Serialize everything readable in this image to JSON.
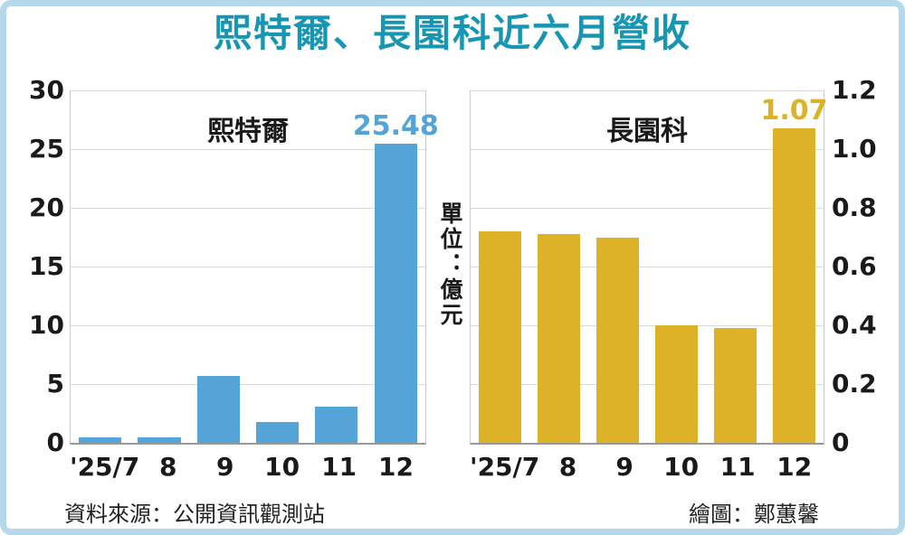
{
  "title": "熙特爾、長園科近六月營收",
  "unit_label": "單位：億元",
  "footer": {
    "source": "資料來源：公開資訊觀測站",
    "credit": "繪圖：鄭蕙馨"
  },
  "colors": {
    "title": "#1796b3",
    "frame_border": "#b5d8ea",
    "grid": "#d9d9d9",
    "axis": "#999999",
    "text": "#1a1a1a",
    "left_bar": "#54a4d7",
    "right_bar": "#ddb226"
  },
  "chart_data": [
    {
      "type": "bar",
      "title": "熙特爾",
      "categories": [
        "'25/7",
        "8",
        "9",
        "10",
        "11",
        "12"
      ],
      "values": [
        0.5,
        0.5,
        5.7,
        1.8,
        3.1,
        25.48
      ],
      "ylim": [
        0,
        30
      ],
      "ytick_values": [
        0,
        5,
        10,
        15,
        20,
        25,
        30
      ],
      "ytick_labels": [
        "0",
        "5",
        "10",
        "15",
        "20",
        "25",
        "30"
      ],
      "yaxis_side": "left",
      "grid": true,
      "bar_color": "#54a4d7",
      "annotation": {
        "index": 5,
        "text": "25.48"
      }
    },
    {
      "type": "bar",
      "title": "長園科",
      "categories": [
        "'25/7",
        "8",
        "9",
        "10",
        "11",
        "12"
      ],
      "values": [
        0.72,
        0.71,
        0.7,
        0.4,
        0.39,
        1.07
      ],
      "ylim": [
        0,
        1.2
      ],
      "ytick_values": [
        0,
        0.2,
        0.4,
        0.6,
        0.8,
        1.0,
        1.2
      ],
      "ytick_labels": [
        "0",
        "0.2",
        "0.4",
        "0.6",
        "0.8",
        "1.0",
        "1.2"
      ],
      "yaxis_side": "right",
      "grid": true,
      "bar_color": "#ddb226",
      "annotation": {
        "index": 5,
        "text": "1.07"
      }
    }
  ]
}
